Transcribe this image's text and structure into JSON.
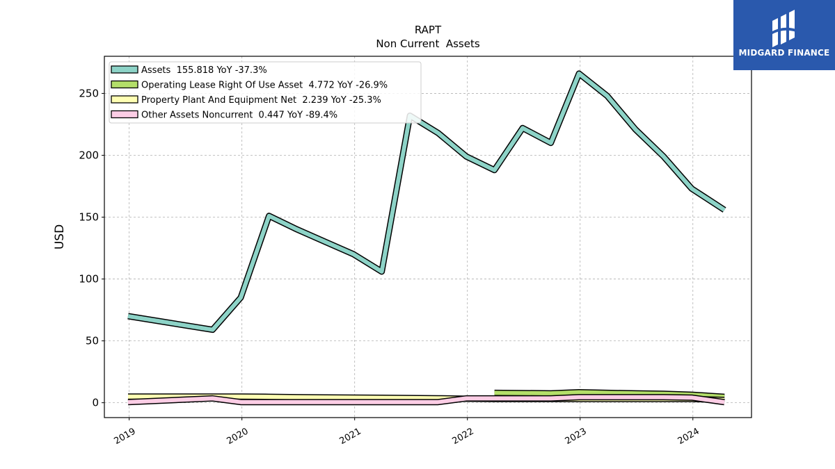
{
  "chart_data": {
    "type": "line",
    "title": "RAPT",
    "subtitle": "Non Current  Assets",
    "ylabel": "USD",
    "xlabel": "",
    "ylim": [
      -12,
      280
    ],
    "xlim": [
      2018.78,
      2024.52
    ],
    "grid": true,
    "legend_position": "top-left",
    "yticks": [
      0,
      50,
      100,
      150,
      200,
      250
    ],
    "xticks": [
      {
        "value": 2019,
        "label": "2019"
      },
      {
        "value": 2020,
        "label": "2020"
      },
      {
        "value": 2021,
        "label": "2021"
      },
      {
        "value": 2022,
        "label": "2022"
      },
      {
        "value": 2023,
        "label": "2023"
      },
      {
        "value": 2024,
        "label": "2024"
      }
    ],
    "series": [
      {
        "name": "Assets  155.818 YoY -37.3%",
        "color": "#8dd3c7",
        "x": [
          2018.99,
          2019.74,
          2019.99,
          2020.24,
          2020.49,
          2020.74,
          2020.99,
          2021.24,
          2021.49,
          2021.74,
          2021.99,
          2022.24,
          2022.49,
          2022.74,
          2022.99,
          2023.24,
          2023.49,
          2023.74,
          2023.99,
          2024.28
        ],
        "values": [
          70,
          59,
          85,
          151,
          140,
          130,
          120,
          106,
          232,
          218,
          199,
          188,
          222,
          210,
          266,
          248,
          221,
          199,
          173,
          155.818
        ]
      },
      {
        "name": "Operating Lease Right Of Use Asset  4.772 YoY -26.9%",
        "color": "#b3de69",
        "x": [
          2022.24,
          2022.49,
          2022.74,
          2022.99,
          2023.24,
          2023.49,
          2023.74,
          2023.99,
          2024.28
        ],
        "values": [
          8.0,
          7.8,
          7.6,
          8.5,
          8.0,
          7.6,
          7.2,
          6.5,
          4.772
        ]
      },
      {
        "name": "Property Plant And Equipment Net  2.239 YoY -25.3%",
        "color": "#ffffb3",
        "x": [
          2018.99,
          2019.74,
          2019.99,
          2020.24,
          2020.49,
          2020.74,
          2020.99,
          2021.24,
          2021.49,
          2021.74,
          2021.99,
          2022.24,
          2022.49,
          2022.74,
          2022.99,
          2023.24,
          2023.49,
          2023.74,
          2023.99,
          2024.28
        ],
        "values": [
          5.0,
          5.0,
          5.0,
          4.8,
          4.5,
          4.3,
          4.2,
          4.0,
          3.8,
          3.6,
          3.2,
          3.0,
          3.0,
          3.0,
          3.0,
          3.0,
          3.0,
          3.0,
          3.0,
          2.239
        ]
      },
      {
        "name": "Other Assets Noncurrent  0.447 YoY -89.4%",
        "color": "#fccde5",
        "x": [
          2018.99,
          2019.74,
          2019.99,
          2020.24,
          2020.49,
          2020.74,
          2020.99,
          2021.24,
          2021.49,
          2021.74,
          2021.99,
          2022.24,
          2022.49,
          2022.74,
          2022.99,
          2023.24,
          2023.49,
          2023.74,
          2023.99,
          2024.28
        ],
        "values": [
          0.5,
          3.5,
          0.5,
          0.5,
          0.5,
          0.5,
          0.5,
          0.5,
          0.5,
          0.5,
          3.5,
          3.5,
          3.5,
          3.5,
          4.5,
          4.5,
          4.5,
          4.5,
          4.2,
          0.447
        ]
      }
    ]
  },
  "logo": {
    "text": "MIDGARD FINANCE",
    "background": "#2a59ad"
  }
}
